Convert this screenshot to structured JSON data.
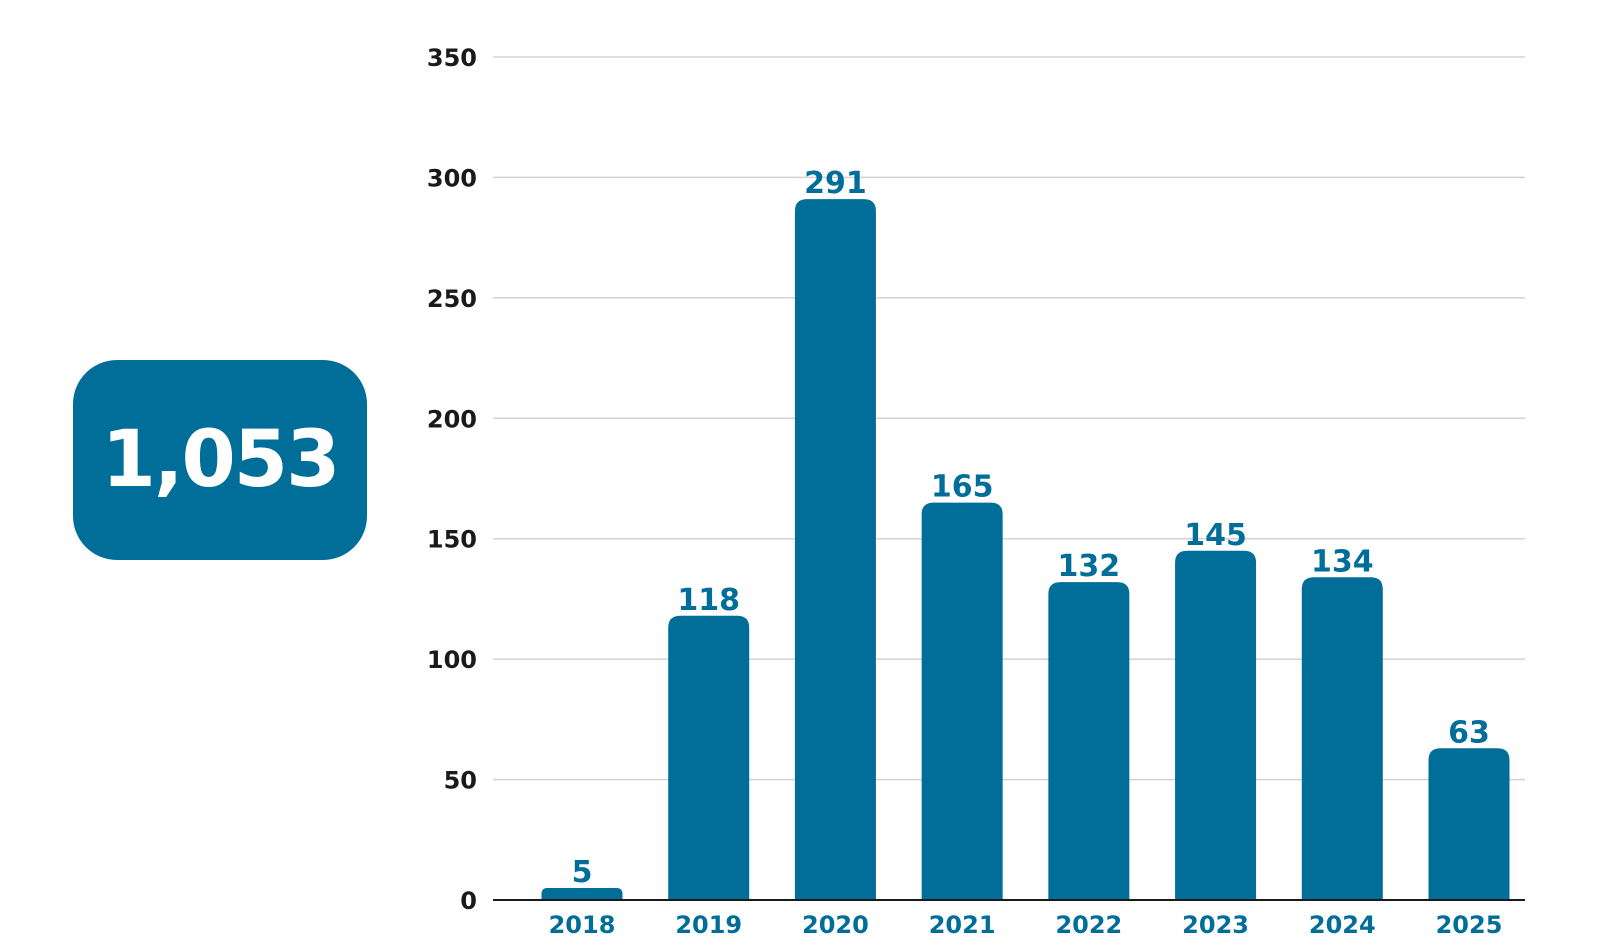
{
  "colors": {
    "accent": "#006E99",
    "grid": "#d3d3d3",
    "axis": "#1a1a1a",
    "tick_text": "#1a1a1a"
  },
  "summary": {
    "total": "1,053"
  },
  "chart_data": {
    "type": "bar",
    "categories": [
      "2018",
      "2019",
      "2020",
      "2021",
      "2022",
      "2023",
      "2024",
      "2025"
    ],
    "values": [
      5,
      118,
      291,
      165,
      132,
      145,
      134,
      63
    ],
    "data_labels": [
      "5",
      "118",
      "291",
      "165",
      "132",
      "145",
      "134",
      "63"
    ],
    "yticks": [
      0,
      50,
      100,
      150,
      200,
      250,
      300,
      350
    ],
    "ytick_labels": [
      "0",
      "50",
      "100",
      "150",
      "200",
      "250",
      "300",
      "350"
    ],
    "ylim": [
      0,
      350
    ],
    "grid": true,
    "title": "",
    "xlabel": "",
    "ylabel": ""
  }
}
